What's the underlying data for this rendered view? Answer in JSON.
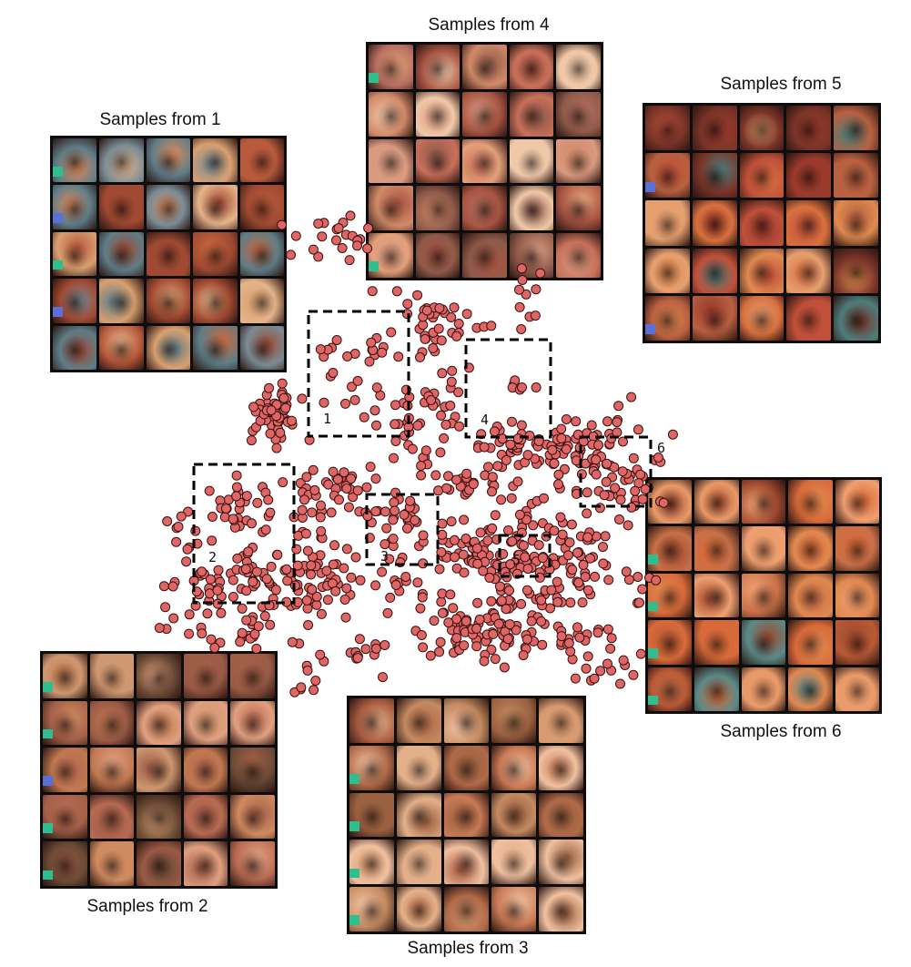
{
  "panels": {
    "p1": {
      "title": "Samples from 1",
      "palette": [
        "#c9673d",
        "#7a8c95",
        "#e08a5a",
        "#a04a32",
        "#d9a070",
        "#5f7d88",
        "#b85a3c",
        "#e6b48a"
      ]
    },
    "p2": {
      "title": "Samples from 2",
      "palette": [
        "#b86a52",
        "#9a5a45",
        "#d08a60",
        "#c07850",
        "#6b4a35",
        "#e0a080",
        "#a46048",
        "#cf9870"
      ]
    },
    "p3": {
      "title": "Samples from 3",
      "palette": [
        "#c97a55",
        "#d89a70",
        "#b06a48",
        "#e4b08a",
        "#a85a3f",
        "#f0c0a0",
        "#c48a60",
        "#9a6040"
      ]
    },
    "p4": {
      "title": "Samples from 4",
      "palette": [
        "#c8705a",
        "#e4a07a",
        "#a75442",
        "#d99a80",
        "#8f5a4a",
        "#f0c8a8",
        "#b77060",
        "#d18a68"
      ]
    },
    "p5": {
      "title": "Samples from 5",
      "palette": [
        "#c0503a",
        "#d8703f",
        "#9a3a2c",
        "#e08a50",
        "#4d7d7a",
        "#b86040",
        "#e6a070",
        "#7a3428"
      ]
    },
    "p6": {
      "title": "Samples from 6",
      "palette": [
        "#d86a3a",
        "#e08850",
        "#b85a35",
        "#f0a070",
        "#5a8a88",
        "#c87048",
        "#e89a68",
        "#a04a30"
      ]
    }
  },
  "regions": [
    {
      "label": "1"
    },
    {
      "label": "2"
    },
    {
      "label": "3"
    },
    {
      "label": "4"
    },
    {
      "label": "5"
    },
    {
      "label": "6"
    }
  ],
  "colors": {
    "point_fill": "#e06666",
    "point_stroke": "#3a1010",
    "box_stroke": "#000000"
  }
}
